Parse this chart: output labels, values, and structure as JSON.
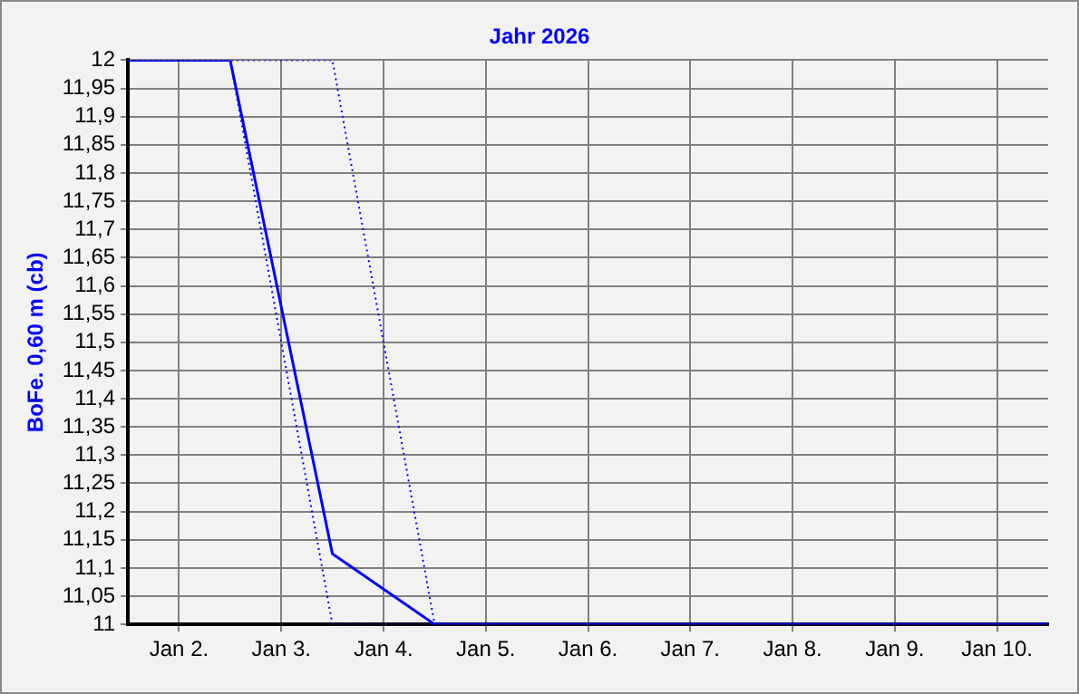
{
  "chart_data": {
    "type": "line",
    "title": "Jahr 2026",
    "ylabel": "BoFe. 0,60 m (cb)",
    "xlim": [
      "--01-01T12:00",
      "--01-10T12:00"
    ],
    "xticks": [
      {
        "value": "--01-02",
        "label": "Jan 2."
      },
      {
        "value": "--01-03",
        "label": "Jan 3."
      },
      {
        "value": "--01-04",
        "label": "Jan 4."
      },
      {
        "value": "--01-05",
        "label": "Jan 5."
      },
      {
        "value": "--01-06",
        "label": "Jan 6."
      },
      {
        "value": "--01-07",
        "label": "Jan 7."
      },
      {
        "value": "--01-08",
        "label": "Jan 8."
      },
      {
        "value": "--01-09",
        "label": "Jan 9."
      },
      {
        "value": "--01-10",
        "label": "Jan 10."
      }
    ],
    "ylim": [
      11,
      12
    ],
    "yticks": [
      11,
      {
        "value": 11.05,
        "label": "11,05"
      },
      {
        "value": 11.1,
        "label": "11,1"
      },
      {
        "value": 11.15,
        "label": "11,15"
      },
      {
        "value": 11.2,
        "label": "11,2"
      },
      {
        "value": 11.25,
        "label": "11,25"
      },
      {
        "value": 11.3,
        "label": "11,3"
      },
      {
        "value": 11.35,
        "label": "11,35"
      },
      {
        "value": 11.4,
        "label": "11,4"
      },
      {
        "value": 11.45,
        "label": "11,45"
      },
      {
        "value": 11.5,
        "label": "11,5"
      },
      {
        "value": 11.55,
        "label": "11,55"
      },
      {
        "value": 11.6,
        "label": "11,6"
      },
      {
        "value": 11.65,
        "label": "11,65"
      },
      {
        "value": 11.7,
        "label": "11,7"
      },
      {
        "value": 11.75,
        "label": "11,75"
      },
      {
        "value": 11.8,
        "label": "11,8"
      },
      {
        "value": 11.85,
        "label": "11,85"
      },
      {
        "value": 11.9,
        "label": "11,9"
      },
      {
        "value": 11.95,
        "label": "11,95"
      },
      12
    ],
    "grid": true,
    "legend": false,
    "marker": "none",
    "series": [
      {
        "color": "#0000ff",
        "line_style": "solid",
        "x": [
          "--01-01T12:00",
          "--01-02T12:00",
          "--01-03T12:00",
          "--01-04T12:00",
          "--01-10T12:00"
        ],
        "values": [
          12,
          12,
          11.125,
          11,
          11
        ]
      },
      {
        "color": "#0000ff",
        "line_style": "dotted",
        "x": [
          "--01-01T12:00",
          "--01-02T12:00",
          "--01-03T12:00",
          "--01-10T12:00"
        ],
        "values": [
          12,
          12,
          11,
          11
        ]
      },
      {
        "color": "#0000ff",
        "line_style": "dotted",
        "x": [
          "--01-01T12:00",
          "--01-03T12:00",
          "--01-04T12:00",
          "--01-10T12:00"
        ],
        "values": [
          12,
          12,
          11,
          11
        ]
      }
    ]
  }
}
